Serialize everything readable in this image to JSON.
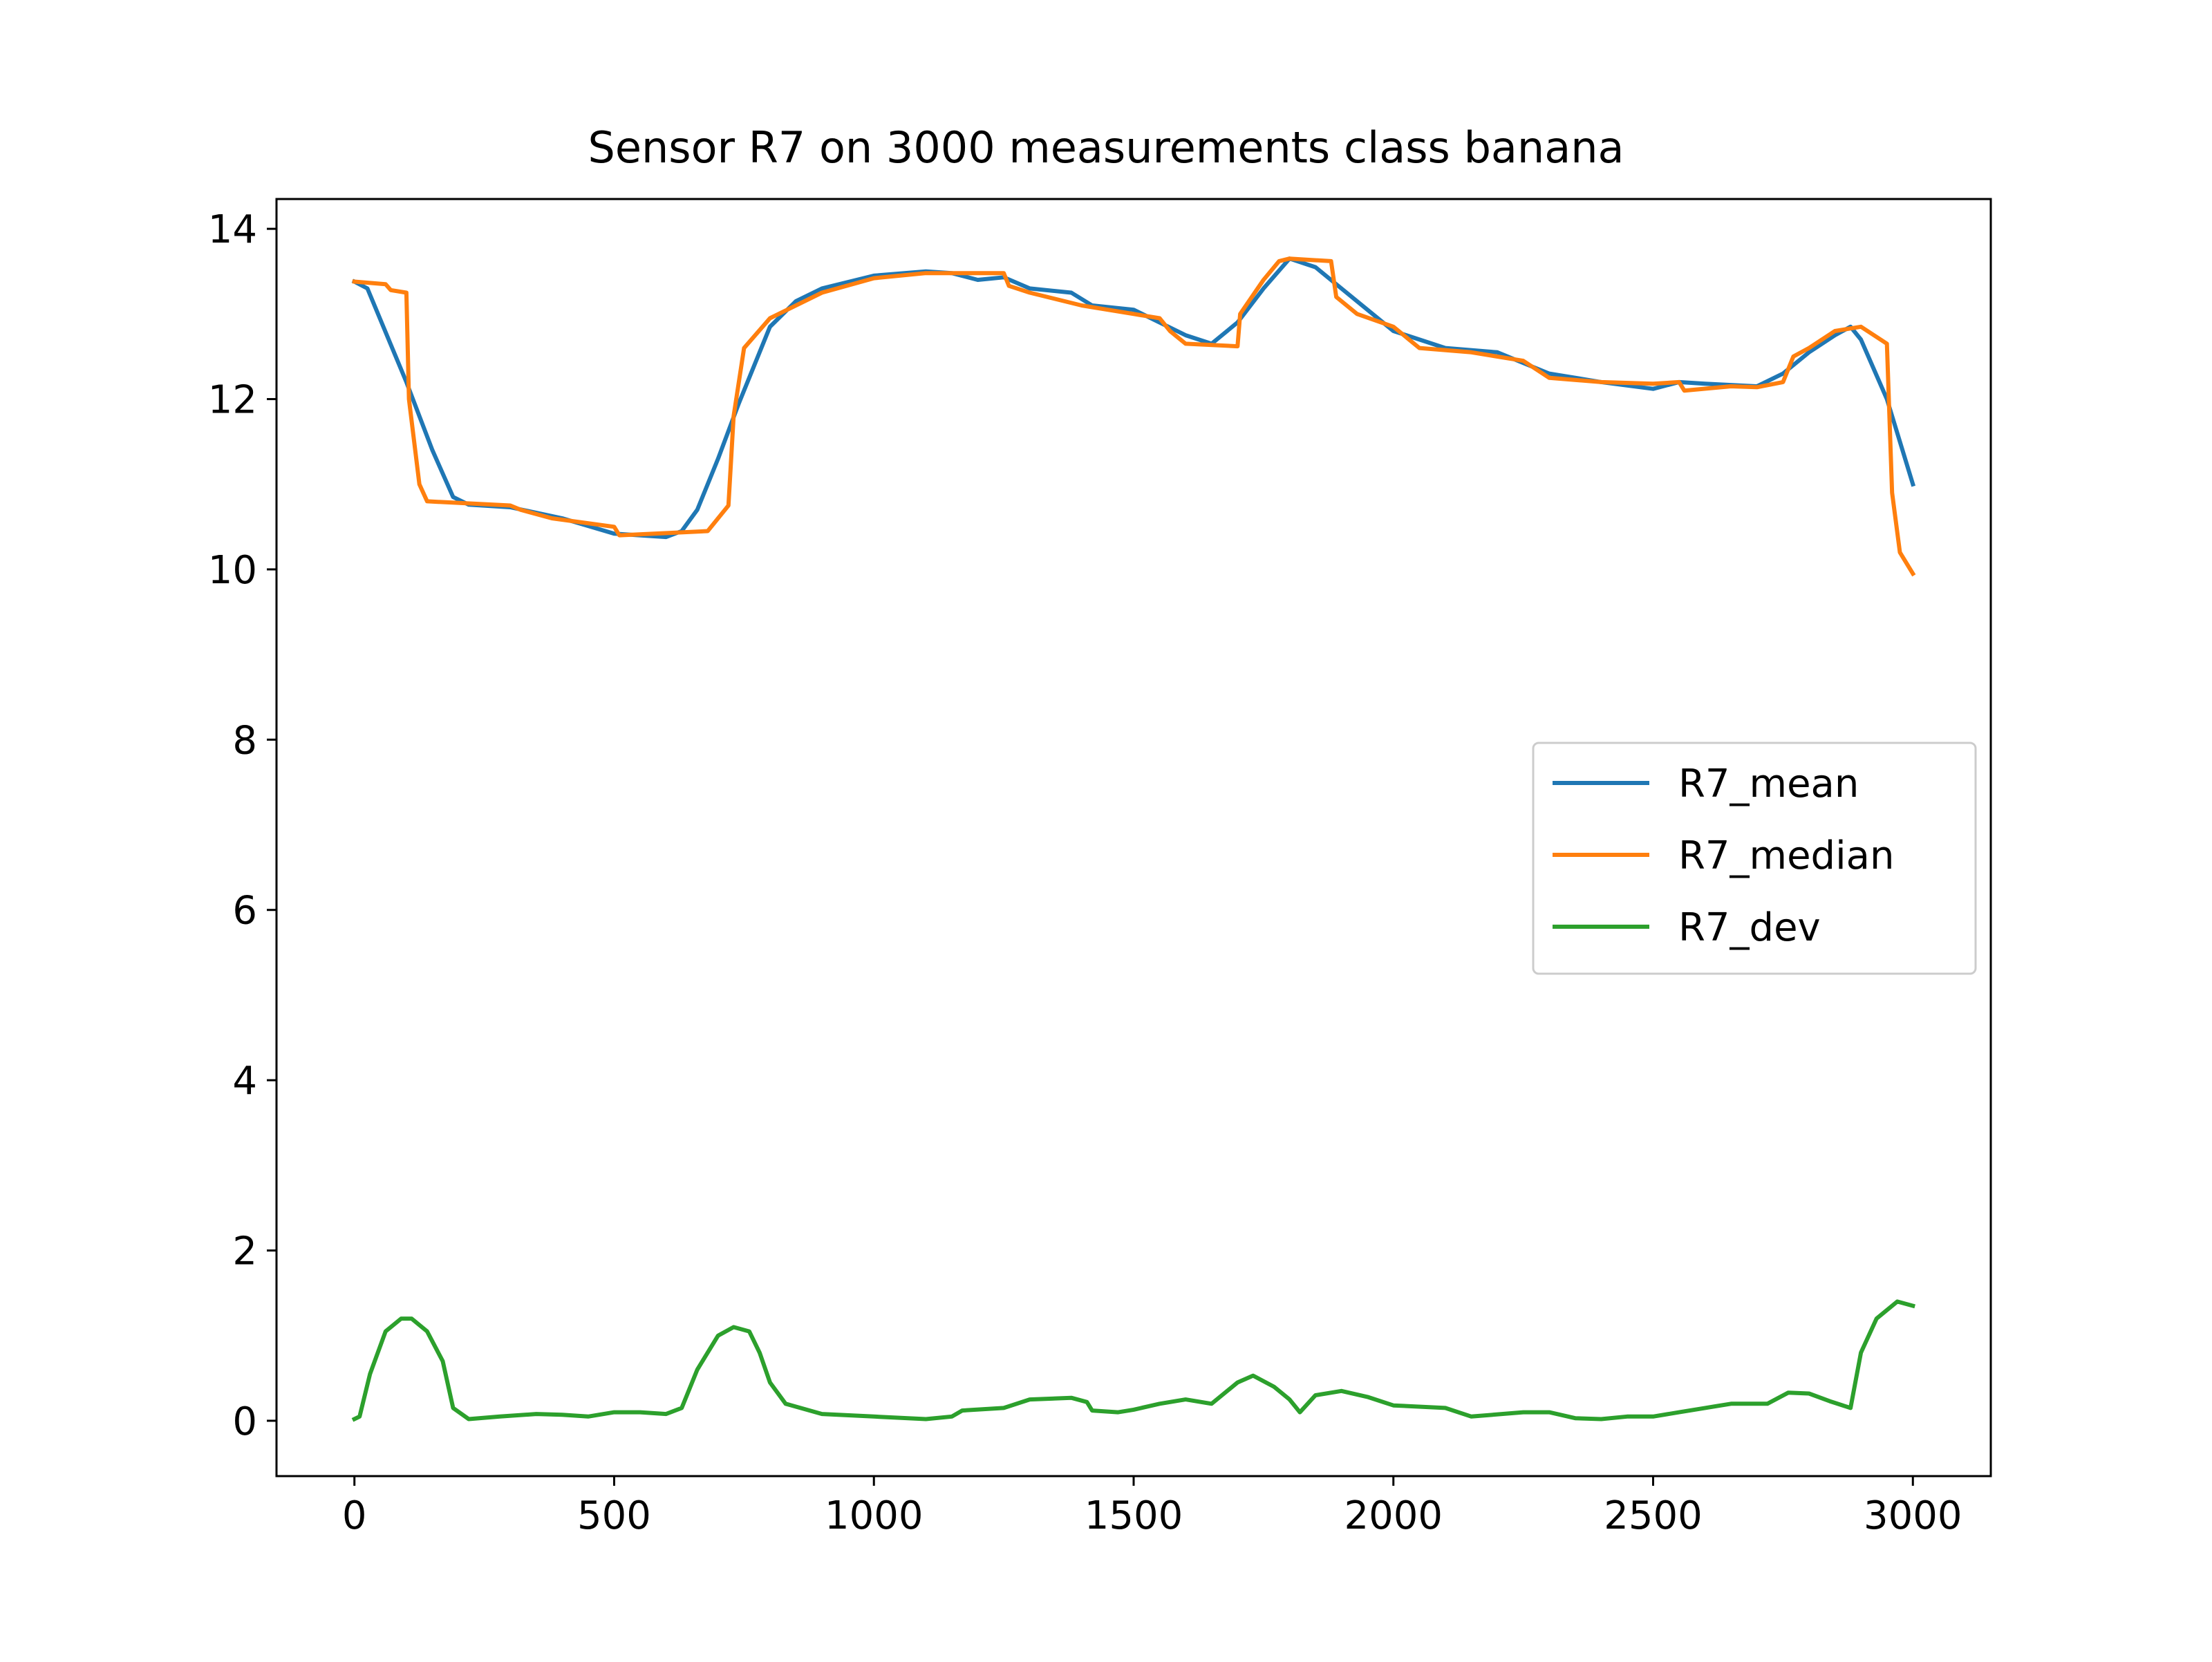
{
  "chart_data": {
    "type": "line",
    "title": "Sensor R7 on 3000 measurements class banana",
    "xlabel": "",
    "ylabel": "",
    "xlim": [
      -150,
      3150
    ],
    "ylim": [
      -0.65,
      14.35
    ],
    "xticks": [
      0,
      500,
      1000,
      1500,
      2000,
      2500,
      3000
    ],
    "xtick_labels": [
      "0",
      "500",
      "1000",
      "1500",
      "2000",
      "2500",
      "3000"
    ],
    "yticks": [
      0,
      2,
      4,
      6,
      8,
      10,
      12,
      14
    ],
    "ytick_labels": [
      "0",
      "2",
      "4",
      "6",
      "8",
      "10",
      "12",
      "14"
    ],
    "grid": false,
    "legend_position": "center-right",
    "series": [
      {
        "name": "R7_mean",
        "color": "#1f77b4",
        "points": [
          [
            0,
            13.38
          ],
          [
            25,
            13.3
          ],
          [
            100,
            12.2
          ],
          [
            150,
            11.4
          ],
          [
            190,
            10.85
          ],
          [
            220,
            10.76
          ],
          [
            300,
            10.73
          ],
          [
            400,
            10.6
          ],
          [
            500,
            10.42
          ],
          [
            600,
            10.38
          ],
          [
            630,
            10.45
          ],
          [
            660,
            10.7
          ],
          [
            700,
            11.3
          ],
          [
            740,
            11.95
          ],
          [
            800,
            12.85
          ],
          [
            850,
            13.15
          ],
          [
            900,
            13.3
          ],
          [
            1000,
            13.45
          ],
          [
            1100,
            13.5
          ],
          [
            1150,
            13.48
          ],
          [
            1200,
            13.4
          ],
          [
            1250,
            13.43
          ],
          [
            1300,
            13.3
          ],
          [
            1380,
            13.25
          ],
          [
            1420,
            13.1
          ],
          [
            1500,
            13.05
          ],
          [
            1600,
            12.75
          ],
          [
            1650,
            12.65
          ],
          [
            1700,
            12.9
          ],
          [
            1750,
            13.3
          ],
          [
            1800,
            13.65
          ],
          [
            1850,
            13.55
          ],
          [
            1900,
            13.3
          ],
          [
            2000,
            12.8
          ],
          [
            2100,
            12.6
          ],
          [
            2200,
            12.55
          ],
          [
            2300,
            12.3
          ],
          [
            2400,
            12.2
          ],
          [
            2500,
            12.12
          ],
          [
            2550,
            12.2
          ],
          [
            2600,
            12.18
          ],
          [
            2700,
            12.15
          ],
          [
            2750,
            12.3
          ],
          [
            2800,
            12.55
          ],
          [
            2850,
            12.75
          ],
          [
            2880,
            12.85
          ],
          [
            2900,
            12.7
          ],
          [
            2950,
            12.0
          ],
          [
            3000,
            11.0
          ]
        ]
      },
      {
        "name": "R7_median",
        "color": "#ff7f0e",
        "points": [
          [
            0,
            13.38
          ],
          [
            60,
            13.35
          ],
          [
            70,
            13.28
          ],
          [
            100,
            13.25
          ],
          [
            105,
            12.0
          ],
          [
            125,
            11.0
          ],
          [
            140,
            10.8
          ],
          [
            300,
            10.75
          ],
          [
            320,
            10.7
          ],
          [
            380,
            10.6
          ],
          [
            500,
            10.5
          ],
          [
            510,
            10.4
          ],
          [
            680,
            10.45
          ],
          [
            700,
            10.6
          ],
          [
            720,
            10.75
          ],
          [
            730,
            11.8
          ],
          [
            750,
            12.6
          ],
          [
            800,
            12.95
          ],
          [
            900,
            13.25
          ],
          [
            1000,
            13.42
          ],
          [
            1100,
            13.48
          ],
          [
            1250,
            13.48
          ],
          [
            1260,
            13.33
          ],
          [
            1300,
            13.25
          ],
          [
            1400,
            13.1
          ],
          [
            1450,
            13.05
          ],
          [
            1500,
            13.0
          ],
          [
            1550,
            12.95
          ],
          [
            1570,
            12.8
          ],
          [
            1600,
            12.65
          ],
          [
            1700,
            12.62
          ],
          [
            1705,
            13.0
          ],
          [
            1750,
            13.4
          ],
          [
            1780,
            13.62
          ],
          [
            1800,
            13.65
          ],
          [
            1880,
            13.62
          ],
          [
            1890,
            13.2
          ],
          [
            1930,
            13.0
          ],
          [
            2000,
            12.85
          ],
          [
            2050,
            12.6
          ],
          [
            2150,
            12.55
          ],
          [
            2250,
            12.45
          ],
          [
            2300,
            12.25
          ],
          [
            2400,
            12.2
          ],
          [
            2500,
            12.18
          ],
          [
            2550,
            12.2
          ],
          [
            2560,
            12.1
          ],
          [
            2650,
            12.15
          ],
          [
            2700,
            12.14
          ],
          [
            2750,
            12.2
          ],
          [
            2770,
            12.5
          ],
          [
            2800,
            12.6
          ],
          [
            2850,
            12.8
          ],
          [
            2900,
            12.85
          ],
          [
            2950,
            12.65
          ],
          [
            2960,
            10.9
          ],
          [
            2975,
            10.2
          ],
          [
            3000,
            9.95
          ]
        ]
      },
      {
        "name": "R7_dev",
        "color": "#2ca02c",
        "points": [
          [
            0,
            0.02
          ],
          [
            10,
            0.05
          ],
          [
            30,
            0.55
          ],
          [
            60,
            1.05
          ],
          [
            90,
            1.2
          ],
          [
            110,
            1.2
          ],
          [
            140,
            1.05
          ],
          [
            170,
            0.7
          ],
          [
            190,
            0.15
          ],
          [
            220,
            0.02
          ],
          [
            280,
            0.05
          ],
          [
            350,
            0.08
          ],
          [
            400,
            0.07
          ],
          [
            450,
            0.05
          ],
          [
            500,
            0.1
          ],
          [
            550,
            0.1
          ],
          [
            600,
            0.08
          ],
          [
            630,
            0.15
          ],
          [
            660,
            0.6
          ],
          [
            700,
            1.0
          ],
          [
            730,
            1.1
          ],
          [
            760,
            1.05
          ],
          [
            780,
            0.8
          ],
          [
            800,
            0.45
          ],
          [
            830,
            0.2
          ],
          [
            900,
            0.08
          ],
          [
            1000,
            0.05
          ],
          [
            1100,
            0.02
          ],
          [
            1150,
            0.05
          ],
          [
            1170,
            0.12
          ],
          [
            1250,
            0.15
          ],
          [
            1300,
            0.25
          ],
          [
            1380,
            0.27
          ],
          [
            1410,
            0.22
          ],
          [
            1420,
            0.12
          ],
          [
            1470,
            0.1
          ],
          [
            1500,
            0.13
          ],
          [
            1550,
            0.2
          ],
          [
            1600,
            0.25
          ],
          [
            1650,
            0.2
          ],
          [
            1700,
            0.45
          ],
          [
            1730,
            0.53
          ],
          [
            1770,
            0.4
          ],
          [
            1800,
            0.25
          ],
          [
            1820,
            0.1
          ],
          [
            1850,
            0.3
          ],
          [
            1900,
            0.35
          ],
          [
            1950,
            0.28
          ],
          [
            2000,
            0.18
          ],
          [
            2100,
            0.15
          ],
          [
            2150,
            0.05
          ],
          [
            2250,
            0.1
          ],
          [
            2300,
            0.1
          ],
          [
            2350,
            0.03
          ],
          [
            2400,
            0.02
          ],
          [
            2450,
            0.05
          ],
          [
            2500,
            0.05
          ],
          [
            2550,
            0.1
          ],
          [
            2600,
            0.15
          ],
          [
            2650,
            0.2
          ],
          [
            2720,
            0.2
          ],
          [
            2760,
            0.33
          ],
          [
            2800,
            0.32
          ],
          [
            2840,
            0.23
          ],
          [
            2880,
            0.15
          ],
          [
            2900,
            0.8
          ],
          [
            2930,
            1.2
          ],
          [
            2970,
            1.4
          ],
          [
            3000,
            1.35
          ]
        ]
      }
    ]
  }
}
